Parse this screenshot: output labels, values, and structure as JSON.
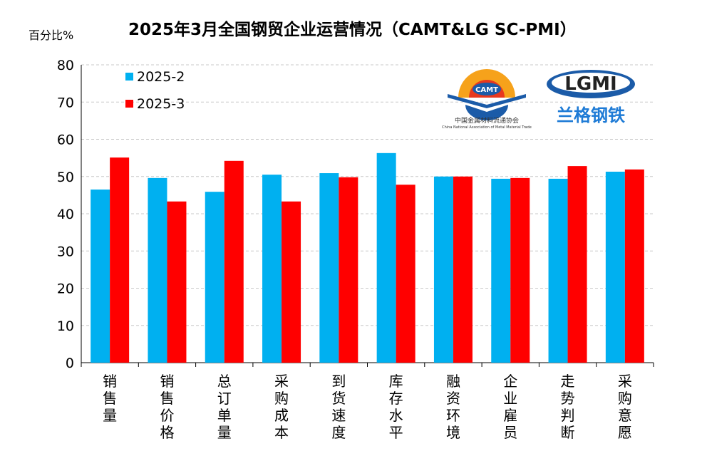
{
  "chart_data": {
    "type": "bar",
    "title": "2025年3月全国钢贸企业运营情况（CAMT&LG SC-PMI）",
    "ylabel": "百分比%",
    "ylim": [
      0,
      80
    ],
    "yticks": [
      0,
      10,
      20,
      30,
      40,
      50,
      60,
      70,
      80
    ],
    "grid": true,
    "legend_position": "top-left",
    "categories": [
      "销售量",
      "销售价格",
      "总订单量",
      "采购成本",
      "到货速度",
      "库存水平",
      "融资环境",
      "企业雇员",
      "走势判断",
      "采购意愿"
    ],
    "series": [
      {
        "name": "2025-2",
        "color": "#00B0F0",
        "values": [
          46.5,
          49.6,
          45.9,
          50.5,
          50.9,
          56.3,
          50.0,
          49.4,
          49.4,
          51.3
        ]
      },
      {
        "name": "2025-3",
        "color": "#FF0000",
        "values": [
          55.1,
          43.3,
          54.2,
          43.3,
          49.8,
          47.8,
          50.0,
          49.6,
          52.8,
          51.9
        ]
      }
    ]
  },
  "logos": {
    "camt_text": "CAMT",
    "camt_name": "中国金属材料流通协会",
    "camt_en": "China National Association of Metal Material Trade",
    "lg_text": "LGMI",
    "lg_name": "兰格钢铁"
  }
}
